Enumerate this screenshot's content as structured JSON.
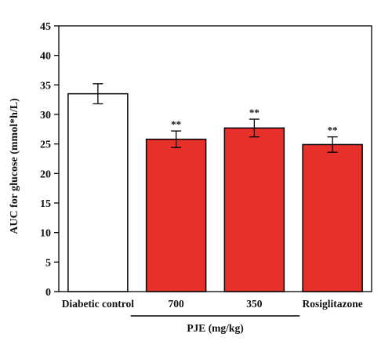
{
  "chart_data": {
    "type": "bar",
    "categories": [
      "Diabetic control",
      "700",
      "350",
      "Rosiglitazone"
    ],
    "values": [
      33.5,
      25.8,
      27.7,
      24.9
    ],
    "errors": [
      1.7,
      1.4,
      1.5,
      1.3
    ],
    "significance": [
      "",
      "**",
      "**",
      "**"
    ],
    "bar_colors": [
      "#ffffff",
      "#e8302b",
      "#e8302b",
      "#e8302b"
    ],
    "bar_edge_color": "#000000",
    "ylabel": "AUC for glucose (mmol*h/L)",
    "xlabel": "",
    "ylim": [
      0,
      45
    ],
    "yticks": [
      0,
      5,
      10,
      15,
      20,
      25,
      30,
      35,
      40,
      45
    ],
    "group_label": "PJE (mg/kg)",
    "group_categories": [
      "700",
      "350"
    ],
    "grid": false
  }
}
